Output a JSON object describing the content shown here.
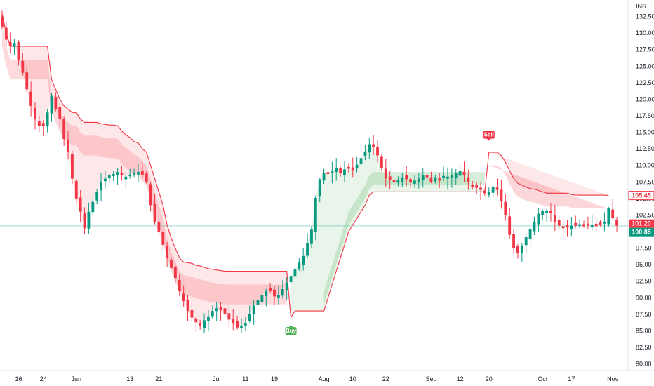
{
  "chart_data": {
    "type": "candlestick",
    "currency_label": "INR",
    "y_ticks": [
      "80.00",
      "82.50",
      "85.00",
      "87.50",
      "90.00",
      "92.50",
      "95.00",
      "97.50",
      "100.00",
      "102.50",
      "105.00",
      "107.50",
      "110.00",
      "112.50",
      "115.00",
      "117.50",
      "120.00",
      "122.50",
      "125.00",
      "127.50",
      "130.00",
      "132.50"
    ],
    "ylim": [
      79,
      135
    ],
    "x_ticks": [
      "16",
      "24",
      "Jun",
      "13",
      "21",
      "Jul",
      "11",
      "19",
      "Aug",
      "10",
      "22",
      "Sep",
      "12",
      "20",
      "Oct",
      "17",
      "Nov"
    ],
    "x_tick_positions": [
      4,
      10,
      18,
      31,
      38,
      52,
      59,
      66,
      78,
      85,
      93,
      104,
      111,
      118,
      131,
      138,
      148
    ],
    "bar_count": 150,
    "price_tags": [
      {
        "label": "105.45",
        "value": 105.45,
        "color": "#f23645",
        "style": "outline"
      },
      {
        "label": "101.20",
        "value": 101.2,
        "color": "#f23645",
        "style": "filled"
      },
      {
        "label": "100.85",
        "value": 100.85,
        "color": "#089981",
        "style": "filled"
      }
    ],
    "signals": [
      {
        "label": "Buy",
        "bar": 70,
        "price": 86.2,
        "color": "#4caf50",
        "position": "below"
      },
      {
        "label": "Sell",
        "bar": 118,
        "price": 113.4,
        "color": "#f23645",
        "position": "above"
      }
    ],
    "last_price_line": 100.85,
    "colors": {
      "up": "#089981",
      "down": "#f23645",
      "trail_bear": "#f23645",
      "trail_bull": "#f23645",
      "zone_bear": "#f23645",
      "zone_bull": "#4caf50"
    },
    "closes": [
      131,
      129,
      128,
      128.5,
      126,
      124,
      121.5,
      119,
      117,
      116,
      116,
      118,
      120.5,
      118.5,
      117,
      114,
      112,
      108,
      105,
      103,
      100.5,
      103,
      104.5,
      106,
      107.5,
      108,
      108.5,
      108.7,
      109,
      108.5,
      108.3,
      108.6,
      108.9,
      109,
      108.5,
      107.5,
      104,
      101.5,
      100,
      98,
      96,
      94.5,
      93,
      91,
      89.5,
      88,
      87,
      86.3,
      85.8,
      86.6,
      87.2,
      88,
      88.4,
      88.1,
      87.5,
      86.7,
      86.2,
      85.5,
      85.8,
      86.2,
      87.6,
      88.8,
      89.6,
      90.4,
      91.1,
      91.1,
      90.2,
      90.4,
      91.3,
      92.3,
      93.3,
      94.3,
      95.3,
      96.3,
      98.3,
      100.3,
      105.1,
      107.9,
      108.8,
      108.7,
      109.1,
      109.6,
      108.8,
      109.4,
      109.5,
      109.3,
      110.1,
      111.1,
      112.1,
      113.2,
      112.8,
      111.5,
      109.6,
      108,
      107.8,
      107.5,
      107.8,
      108.2,
      107.9,
      107.5,
      107.7,
      108,
      108.5,
      108.2,
      107.5,
      108.2,
      107.7,
      108.4,
      108.3,
      108.5,
      108.8,
      109.2,
      108.5,
      107.5,
      106.7,
      106.6,
      106.3,
      105.8,
      106,
      106.8,
      106.3,
      104.6,
      102.5,
      99.5,
      97.5,
      96.8,
      97.8,
      99.2,
      100.4,
      101.5,
      102.7,
      103.1,
      103.2,
      102.8,
      101.4,
      100.9,
      100.5,
      100.6,
      100.9,
      100.9,
      101.1,
      100.8,
      100.9,
      101,
      100.8,
      101,
      101.5,
      103.5,
      102.1,
      100.9
    ],
    "trail": [
      133,
      130,
      128,
      128,
      128,
      128,
      128,
      128,
      128,
      128,
      128,
      128,
      123,
      121.5,
      120,
      119,
      118.5,
      118,
      118,
      117,
      116.5,
      116.5,
      116.5,
      116.5,
      116.3,
      116.2,
      116.1,
      116.1,
      116,
      115.2,
      114.6,
      114.2,
      113.6,
      113.4,
      112.5,
      112,
      110,
      108,
      106,
      104,
      101,
      99,
      97.5,
      96,
      95.4,
      95.3,
      95.2,
      94.9,
      94.8,
      94.6,
      94.4,
      94.3,
      94.2,
      94.1,
      94,
      94,
      94,
      94,
      94,
      94,
      94,
      94,
      94,
      94,
      94,
      94,
      94,
      94,
      94,
      94,
      87,
      88,
      88,
      88,
      88,
      88,
      88,
      88,
      88,
      90,
      92,
      94,
      96,
      98,
      100,
      101,
      102,
      103,
      104,
      105.5,
      106,
      106,
      106,
      106,
      106,
      106,
      106,
      106,
      106,
      106,
      106,
      106,
      106,
      106,
      106,
      106,
      106,
      106,
      106,
      106,
      106,
      106,
      106,
      106,
      106,
      106,
      106,
      106,
      112,
      112,
      112,
      111.5,
      110.5,
      109.2,
      108,
      107.3,
      107,
      106.7,
      106.5,
      106.4,
      106.2,
      106,
      105.8,
      105.8,
      105.8,
      105.8,
      105.8,
      105.8,
      105.6,
      105.5,
      105.5,
      105.5,
      105.5,
      105.5,
      105.5,
      105.5,
      105.5,
      105.45
    ]
  }
}
